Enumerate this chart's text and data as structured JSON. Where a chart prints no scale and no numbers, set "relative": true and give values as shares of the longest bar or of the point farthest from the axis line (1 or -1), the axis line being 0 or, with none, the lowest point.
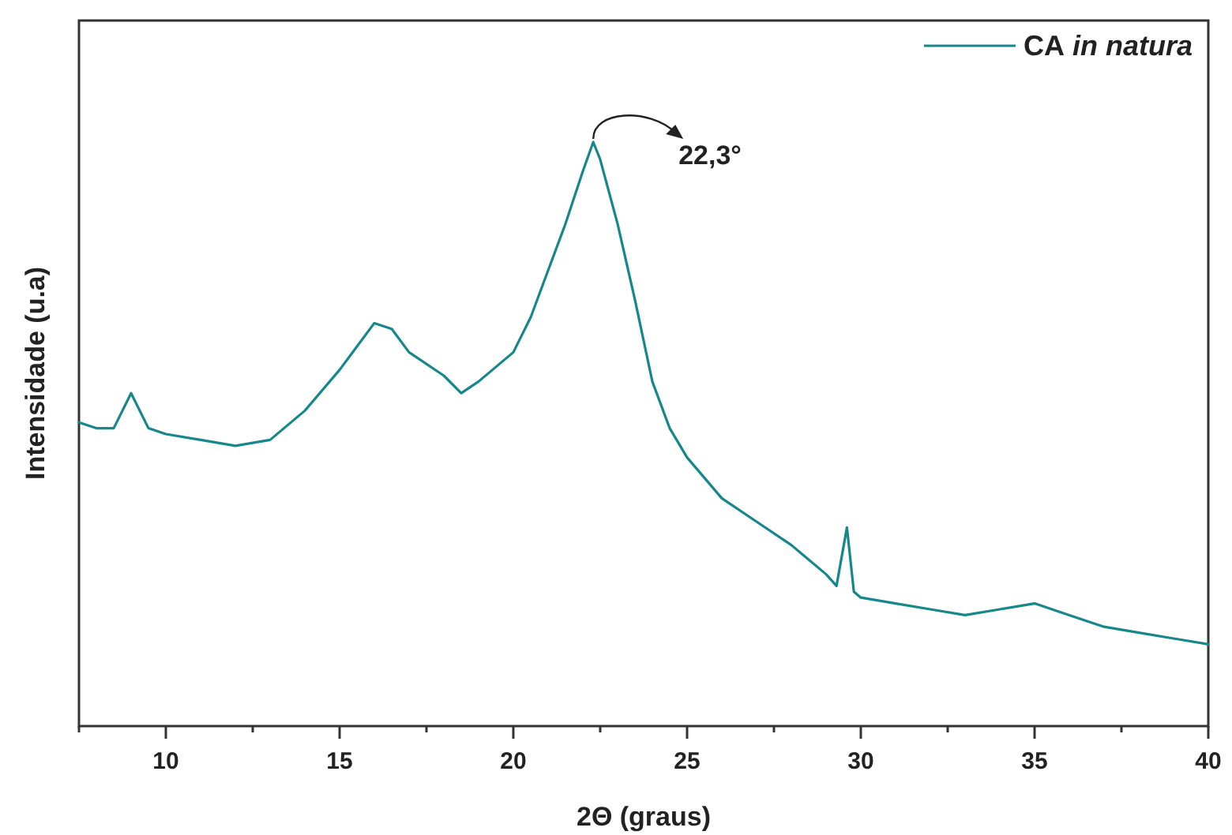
{
  "chart_data": {
    "type": "line",
    "xlabel": "2Θ (graus)",
    "ylabel": "Intensidade (u.a)",
    "relative": true,
    "xlim": [
      7.5,
      40
    ],
    "xticks": [
      {
        "value": 7.5,
        "label": null
      },
      10,
      {
        "value": 12.5,
        "label": null
      },
      15,
      {
        "value": 17.5,
        "label": null
      },
      20,
      {
        "value": 22.5,
        "label": null
      },
      25,
      {
        "value": 27.5,
        "label": null
      },
      30,
      {
        "value": 32.5,
        "label": null
      },
      35,
      {
        "value": 37.5,
        "label": null
      },
      40
    ],
    "legend": "top right",
    "grid": false,
    "marker": "none",
    "line_style": "solid",
    "annotations": [
      {
        "text": "22,3°",
        "x": 22.3,
        "y": 1
      }
    ],
    "series": [
      {
        "name": "CA in natura",
        "color": "#16878a",
        "x": [
          7.5,
          8,
          8.5,
          9,
          9.5,
          10,
          11,
          12,
          13,
          14,
          15,
          15.5,
          16,
          16.5,
          17,
          18,
          18.5,
          19,
          20,
          20.5,
          21,
          21.5,
          22,
          22.3,
          22.5,
          23,
          23.5,
          24,
          24.5,
          25,
          26,
          27,
          28,
          29,
          29.3,
          29.6,
          29.8,
          30,
          31,
          32,
          33,
          34,
          35,
          36,
          37,
          38,
          39,
          40
        ],
        "values": [
          0.52,
          0.51,
          0.51,
          0.57,
          0.51,
          0.5,
          0.49,
          0.48,
          0.49,
          0.54,
          0.61,
          0.65,
          0.69,
          0.68,
          0.64,
          0.6,
          0.57,
          0.59,
          0.64,
          0.7,
          0.78,
          0.86,
          0.95,
          1,
          0.97,
          0.86,
          0.73,
          0.59,
          0.51,
          0.46,
          0.39,
          0.35,
          0.31,
          0.26,
          0.24,
          0.34,
          0.23,
          0.22,
          0.21,
          0.2,
          0.19,
          0.2,
          0.21,
          0.19,
          0.17,
          0.16,
          0.15,
          0.14
        ]
      }
    ]
  }
}
